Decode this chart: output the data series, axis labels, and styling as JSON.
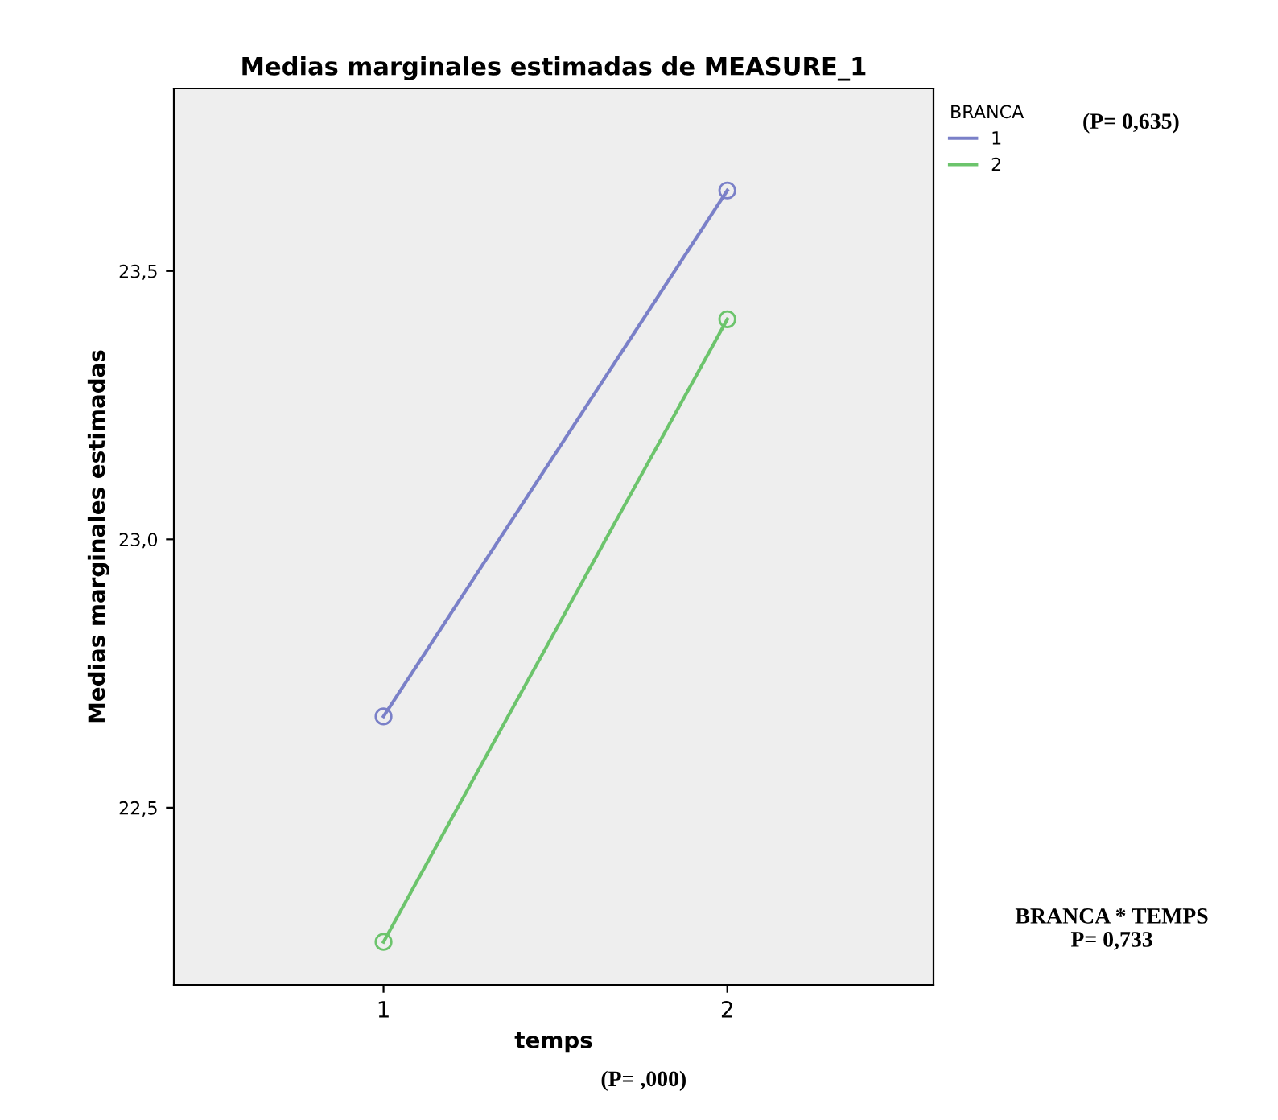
{
  "chart_data": {
    "type": "line",
    "title": "Medias marginales estimadas de MEASURE_1",
    "xlabel": "temps",
    "ylabel": "Medias marginales estimadas",
    "legend_title": "BRANCA",
    "categories": [
      "1",
      "2"
    ],
    "series": [
      {
        "name": "1",
        "color": "#7a80c8",
        "values": [
          22.67,
          23.65
        ]
      },
      {
        "name": "2",
        "color": "#6cc46c",
        "values": [
          22.25,
          23.41
        ]
      }
    ],
    "ylim": [
      22.17,
      23.84
    ],
    "yticks": [
      {
        "value": 22.5,
        "label": "22,5"
      },
      {
        "value": 23.0,
        "label": "23,0"
      },
      {
        "value": 23.5,
        "label": "23,5"
      }
    ],
    "marker": "circle",
    "legend": "top right",
    "grid": false,
    "annotations": [
      "(P= 0,635)",
      "(P= ,000)",
      "BRANCA * TEMPS\nP= 0,733"
    ]
  }
}
